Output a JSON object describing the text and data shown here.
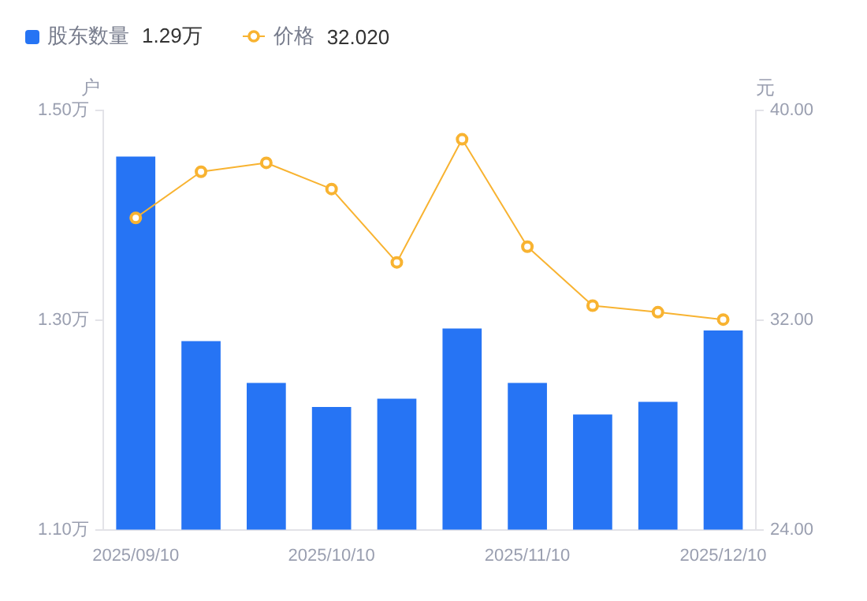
{
  "chart_data": {
    "type": "bar",
    "categories": [
      "2025/09/10",
      null,
      null,
      "2025/10/10",
      null,
      null,
      "2025/11/10",
      null,
      null,
      "2025/12/10"
    ],
    "series": [
      {
        "name": "股东数量",
        "color": "#2674f4",
        "values": [
          1.456,
          1.28,
          1.24,
          1.217,
          1.225,
          1.292,
          1.24,
          1.21,
          1.222,
          1.29
        ]
      },
      {
        "name": "价格",
        "type": "line",
        "axis": "y2",
        "color": "#f8b331",
        "marker": "circle",
        "values": [
          35.9,
          37.66,
          38.0,
          37.0,
          34.2,
          38.9,
          34.8,
          32.55,
          32.3,
          32.02
        ]
      }
    ],
    "ylabel": "户",
    "y2label": "元",
    "ylim": [
      1.1,
      1.5
    ],
    "yticks": [
      {
        "value": 1.1,
        "label": "1.10万"
      },
      {
        "value": 1.3,
        "label": "1.30万"
      },
      {
        "value": 1.5,
        "label": "1.50万"
      }
    ],
    "y2lim": [
      24,
      40
    ],
    "y2ticks": [
      {
        "value": 24,
        "label": "24.00"
      },
      {
        "value": 32,
        "label": "32.00"
      },
      {
        "value": 40,
        "label": "40.00"
      }
    ],
    "annotations": [
      "1.29万",
      "32.020"
    ],
    "legend": "top left",
    "grid": false
  }
}
